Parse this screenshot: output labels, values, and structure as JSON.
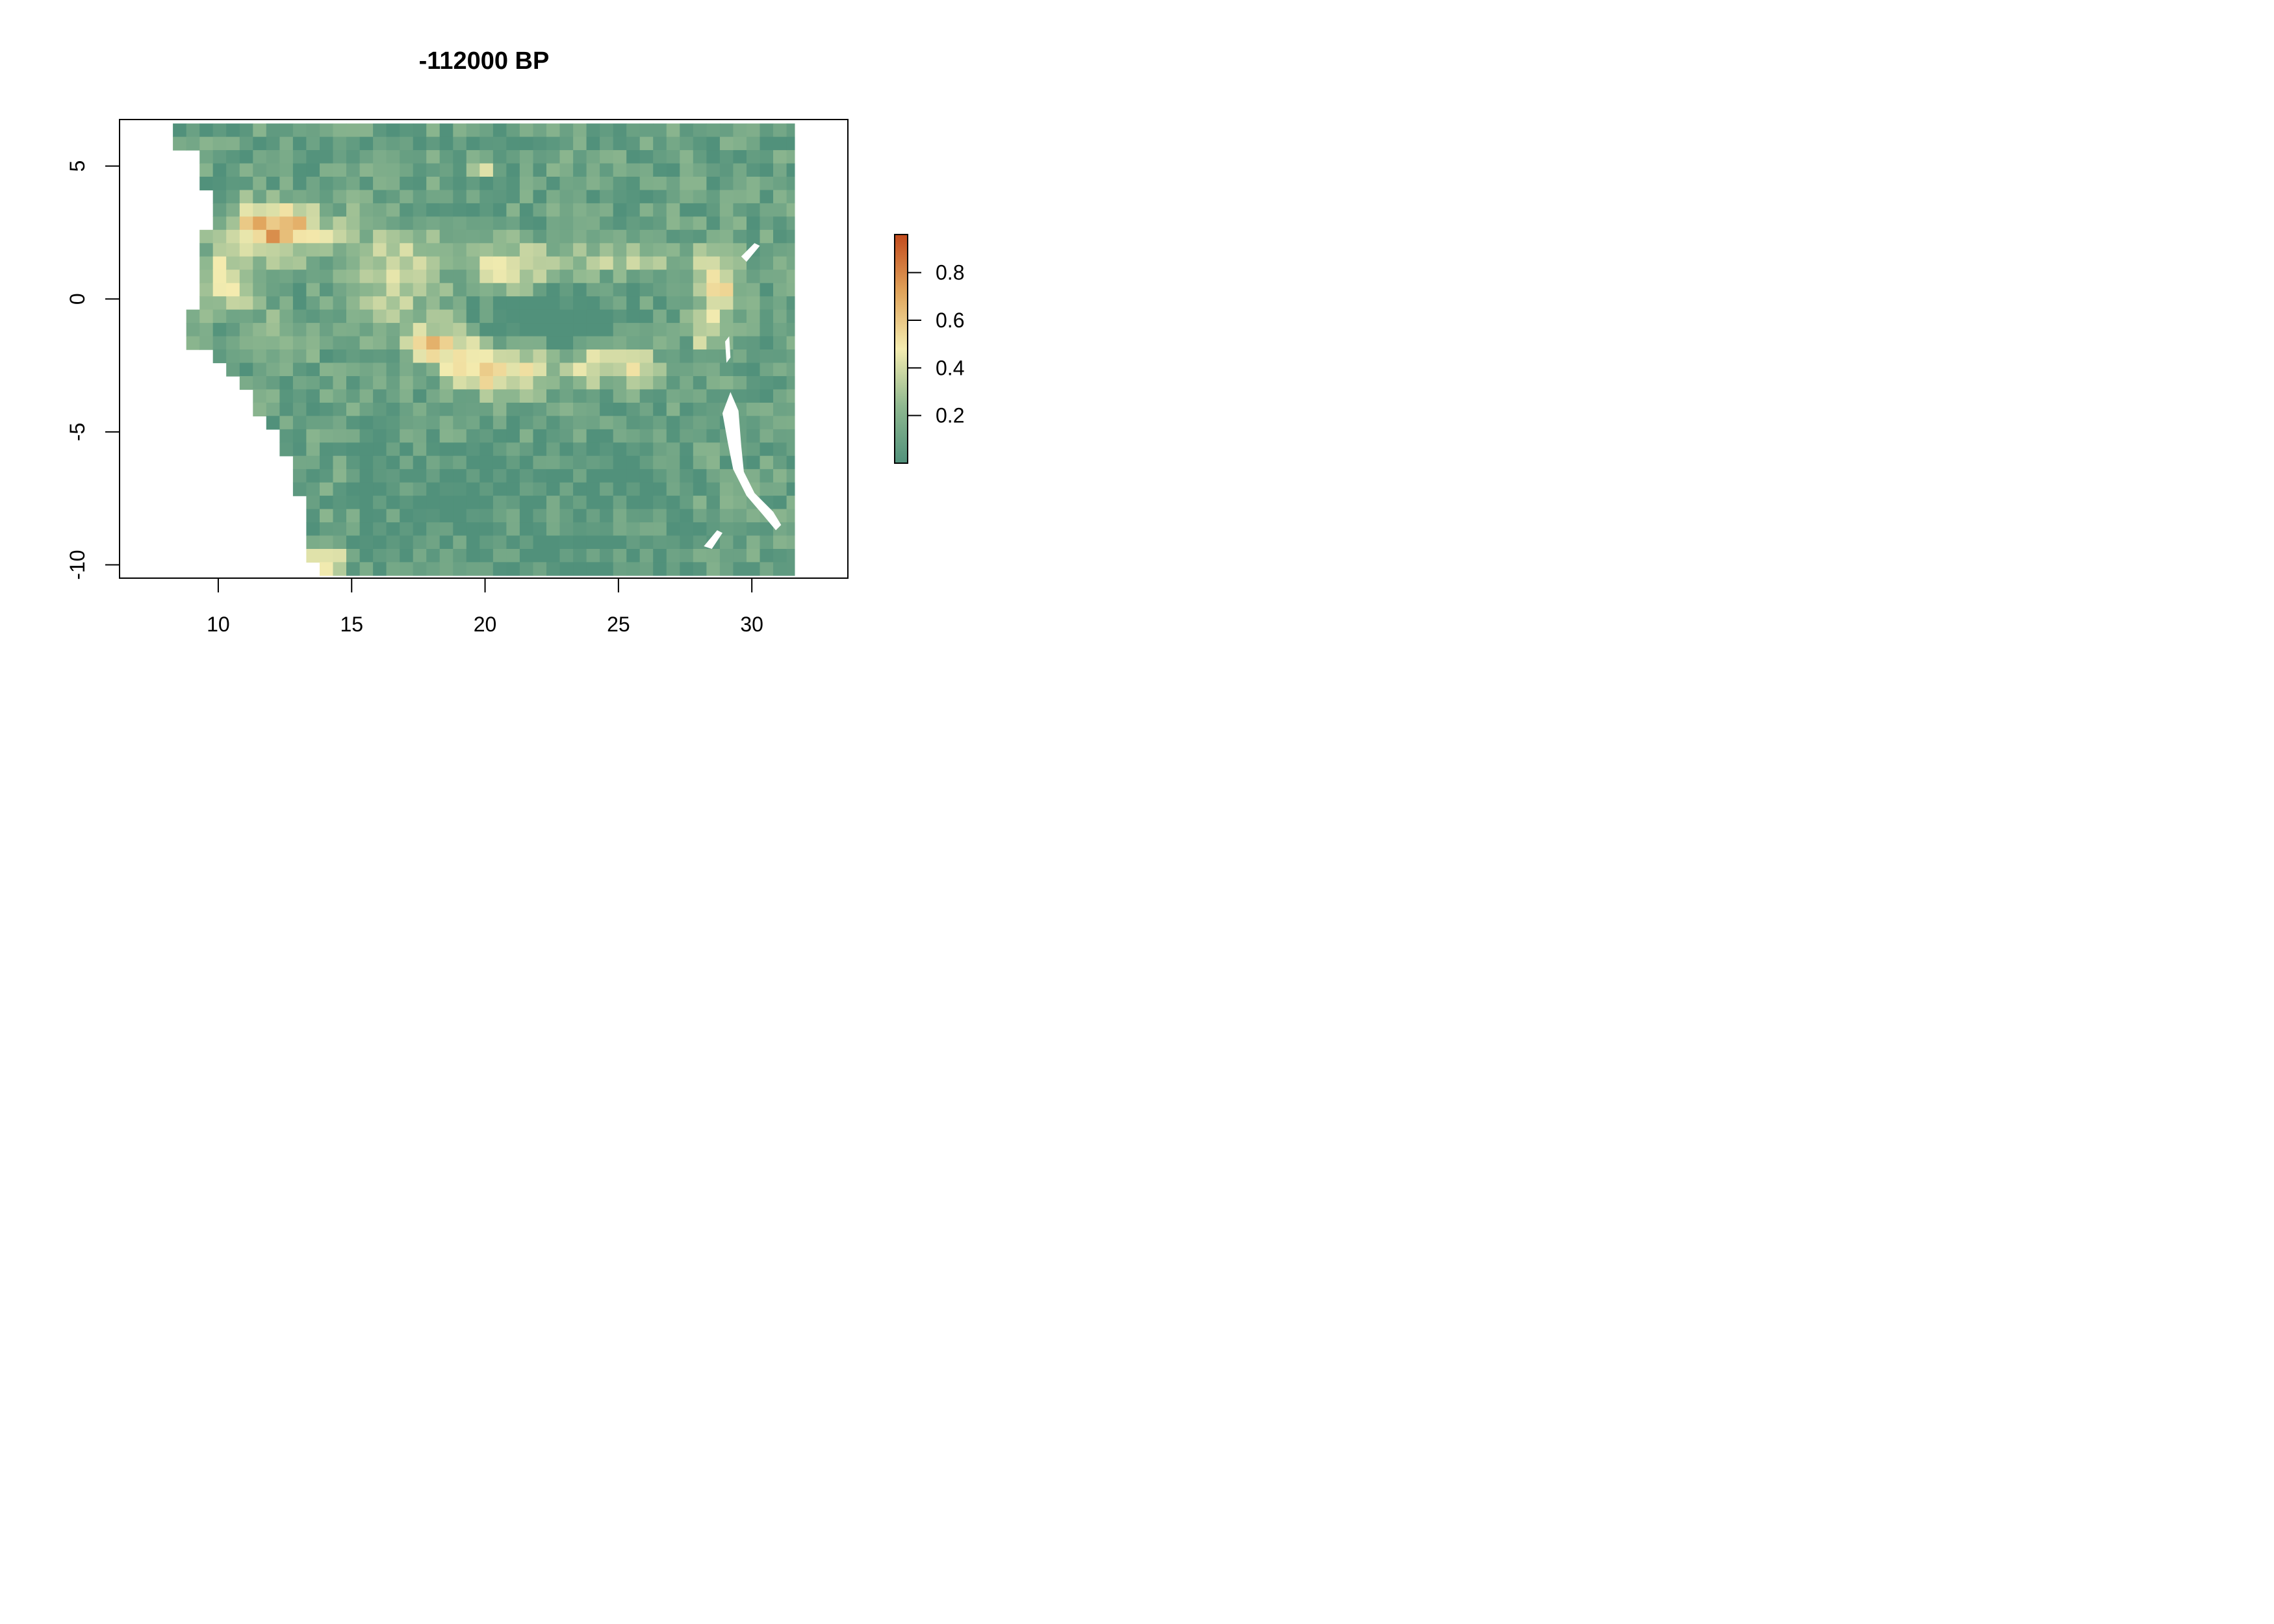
{
  "title": "-112000 BP",
  "map": {
    "x_range": [
      6.3,
      33.6
    ],
    "y_range": [
      -10.5,
      6.75
    ],
    "x_ticks": [
      10,
      15,
      20,
      25,
      30
    ],
    "y_ticks": [
      -10,
      -5,
      0,
      5
    ],
    "x_tick_labels": [
      "10",
      "15",
      "20",
      "25",
      "30"
    ],
    "y_tick_labels": [
      "-10",
      "-5",
      "0",
      "5"
    ],
    "raster_extent": {
      "lon": [
        8.3,
        31.6
      ],
      "lat": [
        -10.5,
        6.6
      ]
    }
  },
  "legend": {
    "value_range": [
      0.0,
      0.96
    ],
    "ticks": [
      0.2,
      0.4,
      0.6,
      0.8
    ],
    "tick_labels": [
      "0.2",
      "0.4",
      "0.6",
      "0.8"
    ],
    "colors": [
      "#51917b",
      "#8fb890",
      "#f4ecb0",
      "#e0a35a",
      "#c24a1d"
    ]
  },
  "colors": {
    "nodata": "#ffffff",
    "frame": "#000000"
  }
}
